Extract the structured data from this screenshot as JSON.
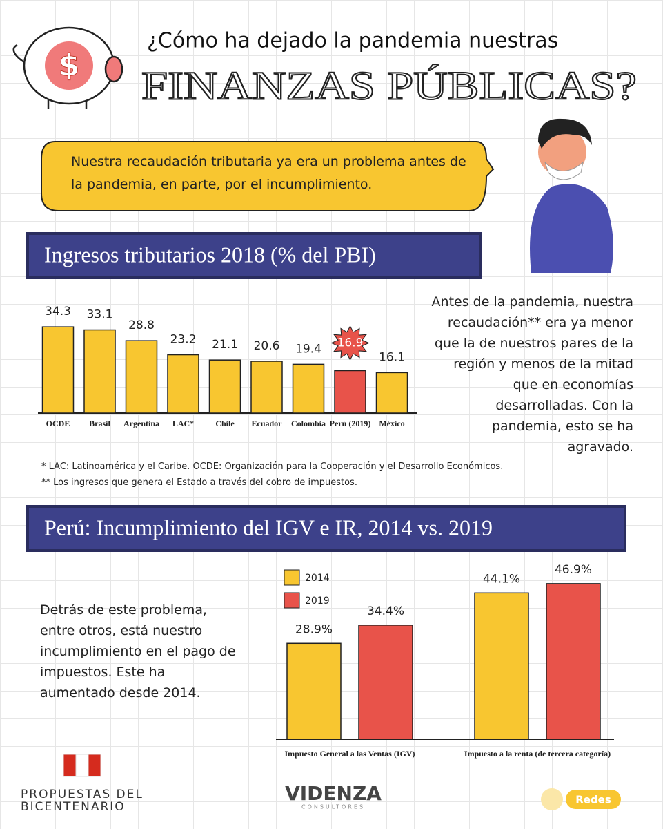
{
  "header": {
    "line1": "¿Cómo ha dejado la pandemia nuestras",
    "line2": "FINANZAS PÚBLICAS?"
  },
  "bubble": "Nuestra recaudación tributaria ya era un problema antes de la pandemia, en parte, por el incumplimiento.",
  "side_text": "Antes de la pandemia, nuestra recaudación** era ya menor que la de nuestros pares de la región y menos de la mitad que en economías desarrolladas. Con la pandemia, esto se ha agravado.",
  "notes": [
    "* LAC: Latinoamérica y el Caribe. OCDE: Organización para la Cooperación y el Desarrollo Económicos.",
    "** Los ingresos que genera el Estado a través del cobro de impuestos."
  ],
  "side_text2": "Detrás de este problema, entre otros, está nuestro incumplimiento en el pago de impuestos. Este ha aumentado desde 2014.",
  "chart_data": [
    {
      "type": "bar",
      "title": "Ingresos tributarios 2018 (% del PBI)",
      "categories": [
        "OCDE",
        "Brasil",
        "Argentina",
        "LAC*",
        "Chile",
        "Ecuador",
        "Colombia",
        "Perú (2019)",
        "México"
      ],
      "values": [
        34.3,
        33.1,
        28.8,
        23.2,
        21.1,
        20.6,
        19.4,
        16.9,
        16.1
      ],
      "colors": [
        "#f8c630",
        "#f8c630",
        "#f8c630",
        "#f8c630",
        "#f8c630",
        "#f8c630",
        "#f8c630",
        "#e8534a",
        "#f8c630"
      ]
    },
    {
      "type": "grouped-bar",
      "title": "Perú: Incumplimiento del IGV e IR, 2014 vs. 2019",
      "categories": [
        "Impuesto General a las Ventas (IGV)",
        "Impuesto a la renta (de tercera categoría)"
      ],
      "series": [
        {
          "name": "2014",
          "color": "#f8c630",
          "values": [
            28.9,
            44.1
          ],
          "value_labels": [
            "28.9%",
            "44.1%"
          ]
        },
        {
          "name": "2019",
          "color": "#e8534a",
          "values": [
            34.4,
            46.9
          ],
          "value_labels": [
            "34.4%",
            "46.9%"
          ]
        }
      ]
    }
  ],
  "footer": {
    "left1": "PROPUESTAS DEL",
    "left2": "BICENTENARIO",
    "brand": "VIDENZA",
    "brand_sub": "CONSULTORES",
    "badge": "Redes"
  }
}
